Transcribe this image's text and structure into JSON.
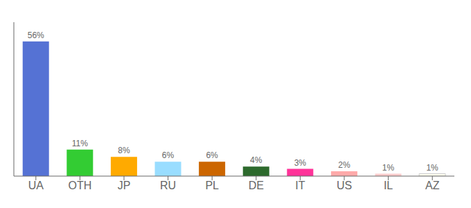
{
  "chart_data": {
    "type": "bar",
    "categories": [
      "UA",
      "OTH",
      "JP",
      "RU",
      "PL",
      "DE",
      "IT",
      "US",
      "IL",
      "AZ"
    ],
    "values": [
      56,
      11,
      8,
      6,
      6,
      4,
      3,
      2,
      1,
      1
    ],
    "value_labels": [
      "56%",
      "11%",
      "8%",
      "6%",
      "6%",
      "4%",
      "3%",
      "2%",
      "1%",
      "1%"
    ],
    "colors": [
      "#5572d4",
      "#33cc33",
      "#ffaa00",
      "#99ddff",
      "#cc6600",
      "#2d6a2d",
      "#ff3399",
      "#ffaaaa",
      "#ffcccc",
      "#fffff0"
    ],
    "data_labels": true,
    "ylim": [
      0,
      64
    ],
    "tick_labels": "x",
    "grid": false
  }
}
